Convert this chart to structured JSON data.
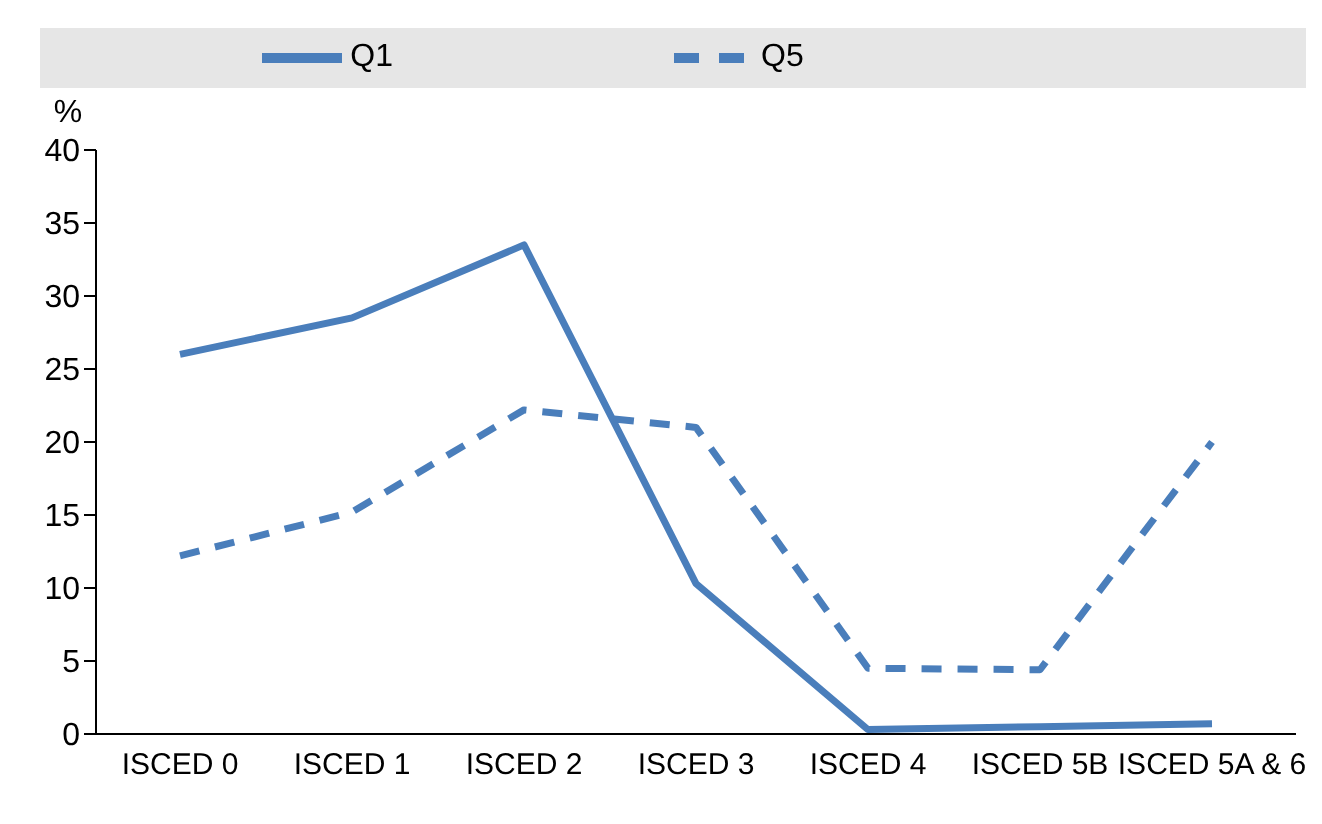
{
  "chart_data": {
    "type": "line",
    "ylabel": "%",
    "categories": [
      "ISCED 0",
      "ISCED 1",
      "ISCED 2",
      "ISCED 3",
      "ISCED 4",
      "ISCED 5B",
      "ISCED 5A & 6"
    ],
    "series": [
      {
        "name": "Q1",
        "color": "#4a7ebb",
        "line_style": "solid",
        "values": [
          26,
          28.5,
          33.5,
          10.3,
          0.3,
          0.5,
          0.7
        ]
      },
      {
        "name": "Q5",
        "color": "#4a7ebb",
        "line_style": "dashed",
        "values": [
          12.2,
          15.2,
          22.2,
          21,
          4.5,
          4.4,
          20
        ]
      }
    ],
    "ylim": [
      0,
      40
    ],
    "yticks": [
      0,
      5,
      10,
      15,
      20,
      25,
      30,
      35,
      40
    ],
    "legend": "top",
    "marker": "none"
  }
}
